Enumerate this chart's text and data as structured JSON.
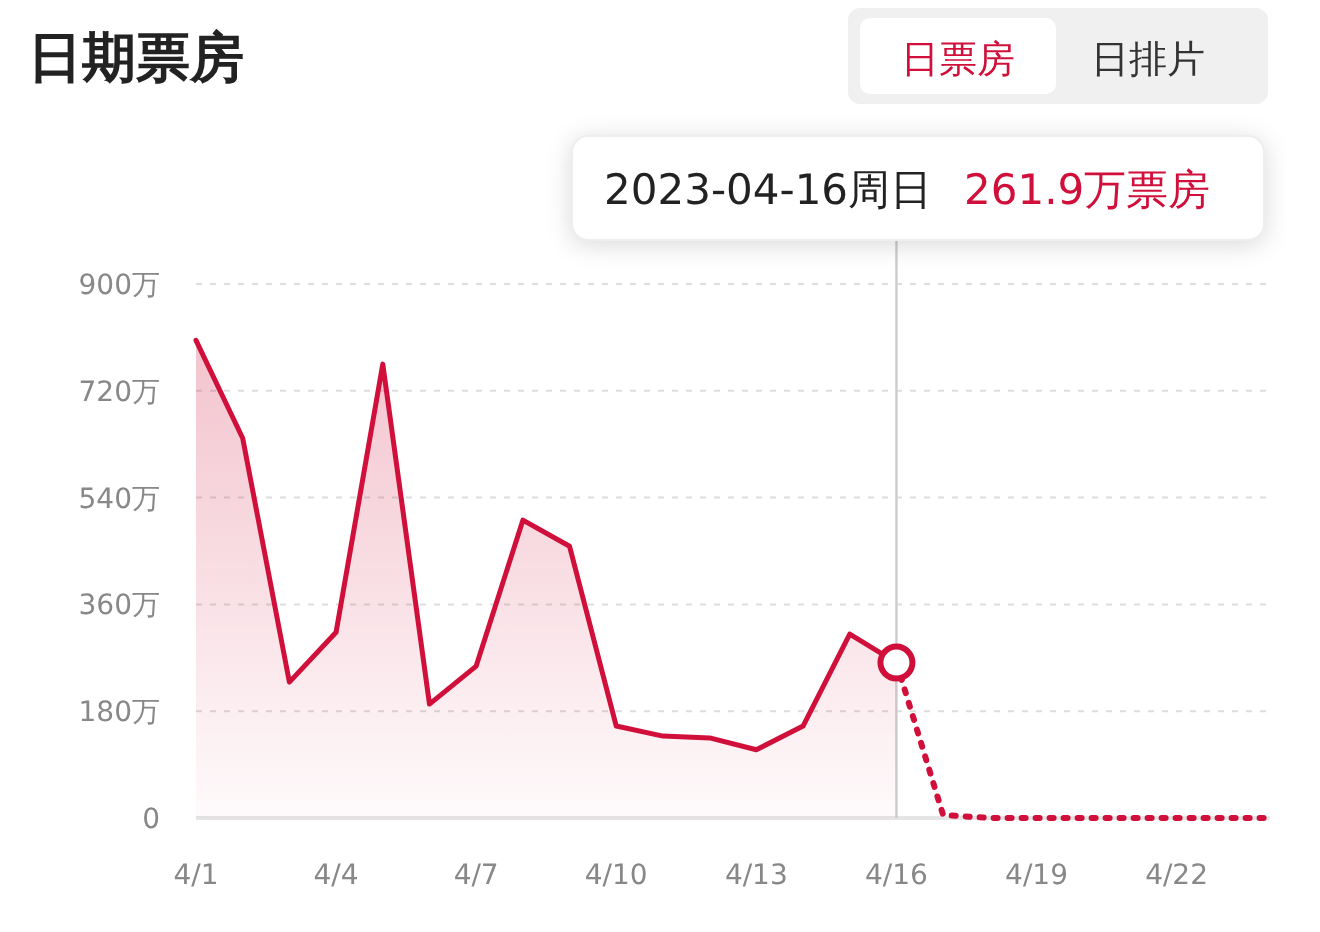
{
  "chart_data": {
    "type": "line",
    "title": "日期票房",
    "categories": [
      "4/1",
      null,
      null,
      "4/4",
      null,
      null,
      "4/7",
      null,
      null,
      "4/10",
      null,
      null,
      "4/13",
      null,
      null,
      "4/16",
      null,
      null,
      "4/19",
      null,
      null,
      "4/22",
      null,
      null
    ],
    "series": [
      {
        "type": "area",
        "color": "#d0103a",
        "line_style": "solid",
        "values": [
          805,
          640,
          229,
          313,
          765,
          192,
          256,
          502,
          458,
          155,
          138,
          135,
          115,
          155,
          310,
          261.9,
          null,
          null,
          null,
          null,
          null,
          null,
          null,
          null
        ]
      },
      {
        "color": "#d0103a",
        "line_style": "dotted",
        "values": [
          null,
          null,
          null,
          null,
          null,
          null,
          null,
          null,
          null,
          null,
          null,
          null,
          null,
          null,
          null,
          261.9,
          5,
          0,
          0,
          0,
          0,
          0,
          0,
          0
        ]
      },
      {
        "type": "scatter",
        "color": "#d0103a",
        "marker": "circle",
        "x": [
          "4/16"
        ],
        "values": [
          261.9
        ]
      }
    ],
    "ylim": [
      0,
      900
    ],
    "yticks": [
      0,
      {
        "value": 180,
        "label": "180万"
      },
      {
        "value": 360,
        "label": "360万"
      },
      {
        "value": 540,
        "label": "540万"
      },
      {
        "value": 720,
        "label": "720万"
      },
      {
        "value": 900,
        "label": "900万"
      }
    ],
    "grid": "y",
    "ref_lines": [
      {
        "axis": "x",
        "value": "4/16",
        "color": "#cccccc"
      }
    ],
    "annotations": [
      "日票房",
      "日排片",
      "2023-04-16周日",
      "261.9万票房"
    ]
  }
}
